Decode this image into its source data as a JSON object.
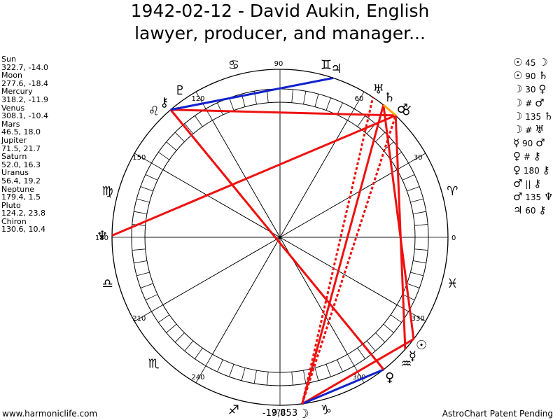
{
  "title": {
    "line1": "1942-02-12 - David Aukin, English",
    "line2": "lawyer, producer, and manager..."
  },
  "planets": [
    {
      "name": "Sun",
      "coords": "322.7, -14.0"
    },
    {
      "name": "Moon",
      "coords": "277.6, -18.4"
    },
    {
      "name": "Mercury",
      "coords": "318.2, -11.9"
    },
    {
      "name": "Venus",
      "coords": "308.1, -10.4"
    },
    {
      "name": "Mars",
      "coords": "46.5, 18.0"
    },
    {
      "name": "Jupiter",
      "coords": "71.5, 21.7"
    },
    {
      "name": "Saturn",
      "coords": "52.0, 16.3"
    },
    {
      "name": "Uranus",
      "coords": "56.4, 19.2"
    },
    {
      "name": "Neptune",
      "coords": "179.4, 1.5"
    },
    {
      "name": "Pluto",
      "coords": "124.2, 23.8"
    },
    {
      "name": "Chiron",
      "coords": "130.6, 10.4"
    }
  ],
  "aspects": [
    {
      "p1": "☉",
      "angle": "45",
      "p2": "☽"
    },
    {
      "p1": "☉",
      "angle": "90",
      "p2": "♄"
    },
    {
      "p1": "☽",
      "angle": "30",
      "p2": "♀"
    },
    {
      "p1": "☽",
      "angle": "#",
      "p2": "♂"
    },
    {
      "p1": "☽",
      "angle": "135",
      "p2": "♄"
    },
    {
      "p1": "☽",
      "angle": "#",
      "p2": "♅"
    },
    {
      "p1": "☿",
      "angle": "90",
      "p2": "♂"
    },
    {
      "p1": "♀",
      "angle": "#",
      "p2": "⚷"
    },
    {
      "p1": "♀",
      "angle": "180",
      "p2": "⚷"
    },
    {
      "p1": "♂",
      "angle": "||",
      "p2": "⚷"
    },
    {
      "p1": "♂",
      "angle": "135",
      "p2": "♆"
    },
    {
      "p1": "♃",
      "angle": "60",
      "p2": "⚷"
    }
  ],
  "wheel": {
    "degree_labels": [
      "0",
      "30",
      "60",
      "90",
      "120",
      "150",
      "180",
      "210",
      "240",
      "270",
      "300",
      "330"
    ],
    "zodiac_glyphs": [
      "♈",
      "♉",
      "♊",
      "♋",
      "♌",
      "♍",
      "♎",
      "♏",
      "♐",
      "♑",
      "♒",
      "♓"
    ],
    "planet_glyphs": [
      {
        "name": "Sun",
        "glyph": "☉",
        "lon": 322.7
      },
      {
        "name": "Moon",
        "glyph": "☽",
        "lon": 277.6
      },
      {
        "name": "Mercury",
        "glyph": "☿",
        "lon": 318.2
      },
      {
        "name": "Venus",
        "glyph": "♀",
        "lon": 308.1
      },
      {
        "name": "Mars",
        "glyph": "♂",
        "lon": 46.5
      },
      {
        "name": "Jupiter",
        "glyph": "♃",
        "lon": 71.5
      },
      {
        "name": "Saturn",
        "glyph": "♄",
        "lon": 52.0
      },
      {
        "name": "Uranus",
        "glyph": "♅",
        "lon": 56.4
      },
      {
        "name": "Neptune",
        "glyph": "♆",
        "lon": 179.4
      },
      {
        "name": "Pluto",
        "glyph": "♇",
        "lon": 124.2
      },
      {
        "name": "Chiron",
        "glyph": "⚷",
        "lon": 130.6
      }
    ],
    "aspect_lines": [
      {
        "from": "Sun",
        "to": "Moon",
        "color": "#ee1111",
        "style": "solid"
      },
      {
        "from": "Sun",
        "to": "Saturn",
        "color": "#ee1111",
        "style": "solid"
      },
      {
        "from": "Moon",
        "to": "Venus",
        "color": "#1122cc",
        "style": "solid"
      },
      {
        "from": "Moon",
        "to": "Mars",
        "color": "#ee1111",
        "style": "dotted"
      },
      {
        "from": "Moon",
        "to": "Saturn",
        "color": "#ee1111",
        "style": "solid"
      },
      {
        "from": "Moon",
        "to": "Uranus",
        "color": "#ee1111",
        "style": "dotted"
      },
      {
        "from": "Mercury",
        "to": "Mars",
        "color": "#ee1111",
        "style": "solid"
      },
      {
        "from": "Venus",
        "to": "Chiron",
        "color": "#ee1111",
        "style": "dotted"
      },
      {
        "from": "Venus",
        "to": "Chiron",
        "color": "#ee1111",
        "style": "solid"
      },
      {
        "from": "Mars",
        "to": "Chiron",
        "color": "#ee1111",
        "style": "solid"
      },
      {
        "from": "Mars",
        "to": "Neptune",
        "color": "#ee1111",
        "style": "solid"
      },
      {
        "from": "Jupiter",
        "to": "Chiron",
        "color": "#1122cc",
        "style": "solid"
      },
      {
        "from": "Mars",
        "to": "Saturn",
        "color": "#ffa500",
        "style": "solid"
      }
    ]
  },
  "bottom_value": "-19,853",
  "footer": {
    "left": "www.harmoniclife.com",
    "right": "AstroChart Patent Pending"
  }
}
